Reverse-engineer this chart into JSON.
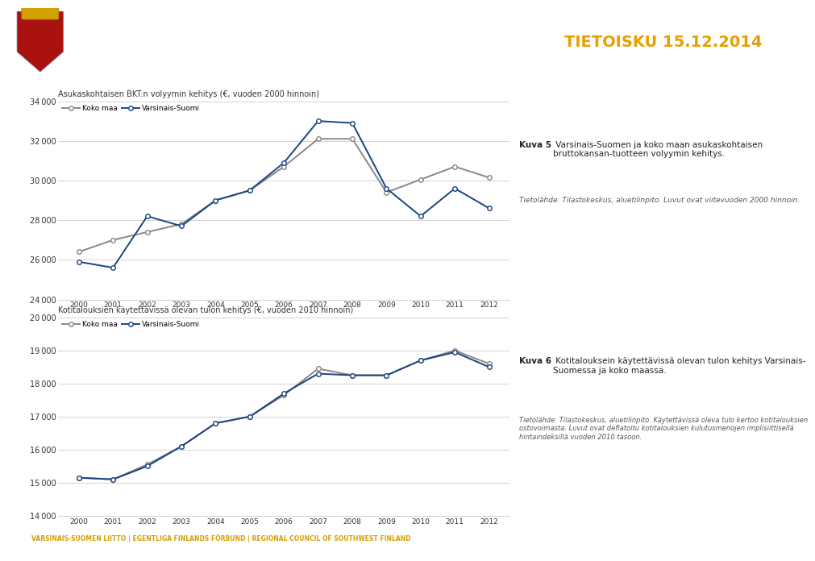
{
  "years": [
    2000,
    2001,
    2002,
    2003,
    2004,
    2005,
    2006,
    2007,
    2008,
    2009,
    2010,
    2011,
    2012
  ],
  "chart1_title": "Asukaskohtaisen BKT:n volyymin kehitys (€, vuoden 2000 hinnoin)",
  "chart1_koko_maa": [
    26400,
    27000,
    27400,
    27800,
    29000,
    29500,
    30700,
    32100,
    32100,
    29400,
    30050,
    30700,
    30150
  ],
  "chart1_varsinais": [
    25900,
    25600,
    28200,
    27700,
    29000,
    29500,
    30900,
    33000,
    32900,
    29600,
    28200,
    29600,
    28600
  ],
  "chart1_ylim": [
    24000,
    34000
  ],
  "chart1_yticks": [
    24000,
    26000,
    28000,
    30000,
    32000,
    34000
  ],
  "chart2_title": "Kotitalouksien käytettävissä olevan tulon kehitys (€, vuoden 2010 hinnoin)",
  "chart2_koko_maa": [
    15150,
    15100,
    15550,
    16100,
    16800,
    17000,
    17650,
    18450,
    18250,
    18250,
    18700,
    19000,
    18600
  ],
  "chart2_varsinais": [
    15150,
    15100,
    15500,
    16100,
    16800,
    17000,
    17700,
    18300,
    18250,
    18250,
    18700,
    18950,
    18500
  ],
  "chart2_ylim": [
    14000,
    20000
  ],
  "chart2_yticks": [
    14000,
    15000,
    16000,
    17000,
    18000,
    19000,
    20000
  ],
  "koko_maa_color": "#888888",
  "varsinais_color": "#1a4480",
  "line_width": 1.4,
  "marker_size": 4,
  "legend_koko": "Koko maa",
  "legend_vars": "Varsinais-Suomi",
  "tietoisku_text": "TIETOISKU 15.12.2014",
  "tietoisku_color": "#e8a000",
  "kuva5_bold": "Kuva 5",
  "kuva5_text": " Varsinais-Suomen ja koko maan asukaskohtaisen\nbruttokansan­tuotteen volyymin kehitys.",
  "kuva5_source": "Tietolähde: Tilastokeskus, aluetilinpito. Luvut ovat viitevuoden 2000 hinnoin.",
  "kuva6_bold": "Kuva 6",
  "kuva6_text": " Kotitalouksein käytettävissä olevan tulon kehitys Varsinais-\nSuomessa ja koko maassa.",
  "kuva6_source": "Tietolähde: Tilastokeskus, aluetilinpito. Käytettävissä oleva tulo kertoo kotitalouksien\nostovoimasta. Luvut ovat deflatoitu kotitalouksien kulutusmenojen implisiittisellä\nhintaindeksillä vuoden 2010 tasoon.",
  "footer_text": "VARSINAIS-SUOMEN LIITTO | EGENTLIGA FINLANDS FÖRBUND | REGIONAL COUNCIL OF SOUTHWEST FINLAND",
  "footer_bg": "#555555",
  "footer_color": "#d4a000",
  "bg_color": "#ffffff",
  "chart_area_bg": "#ffffff"
}
